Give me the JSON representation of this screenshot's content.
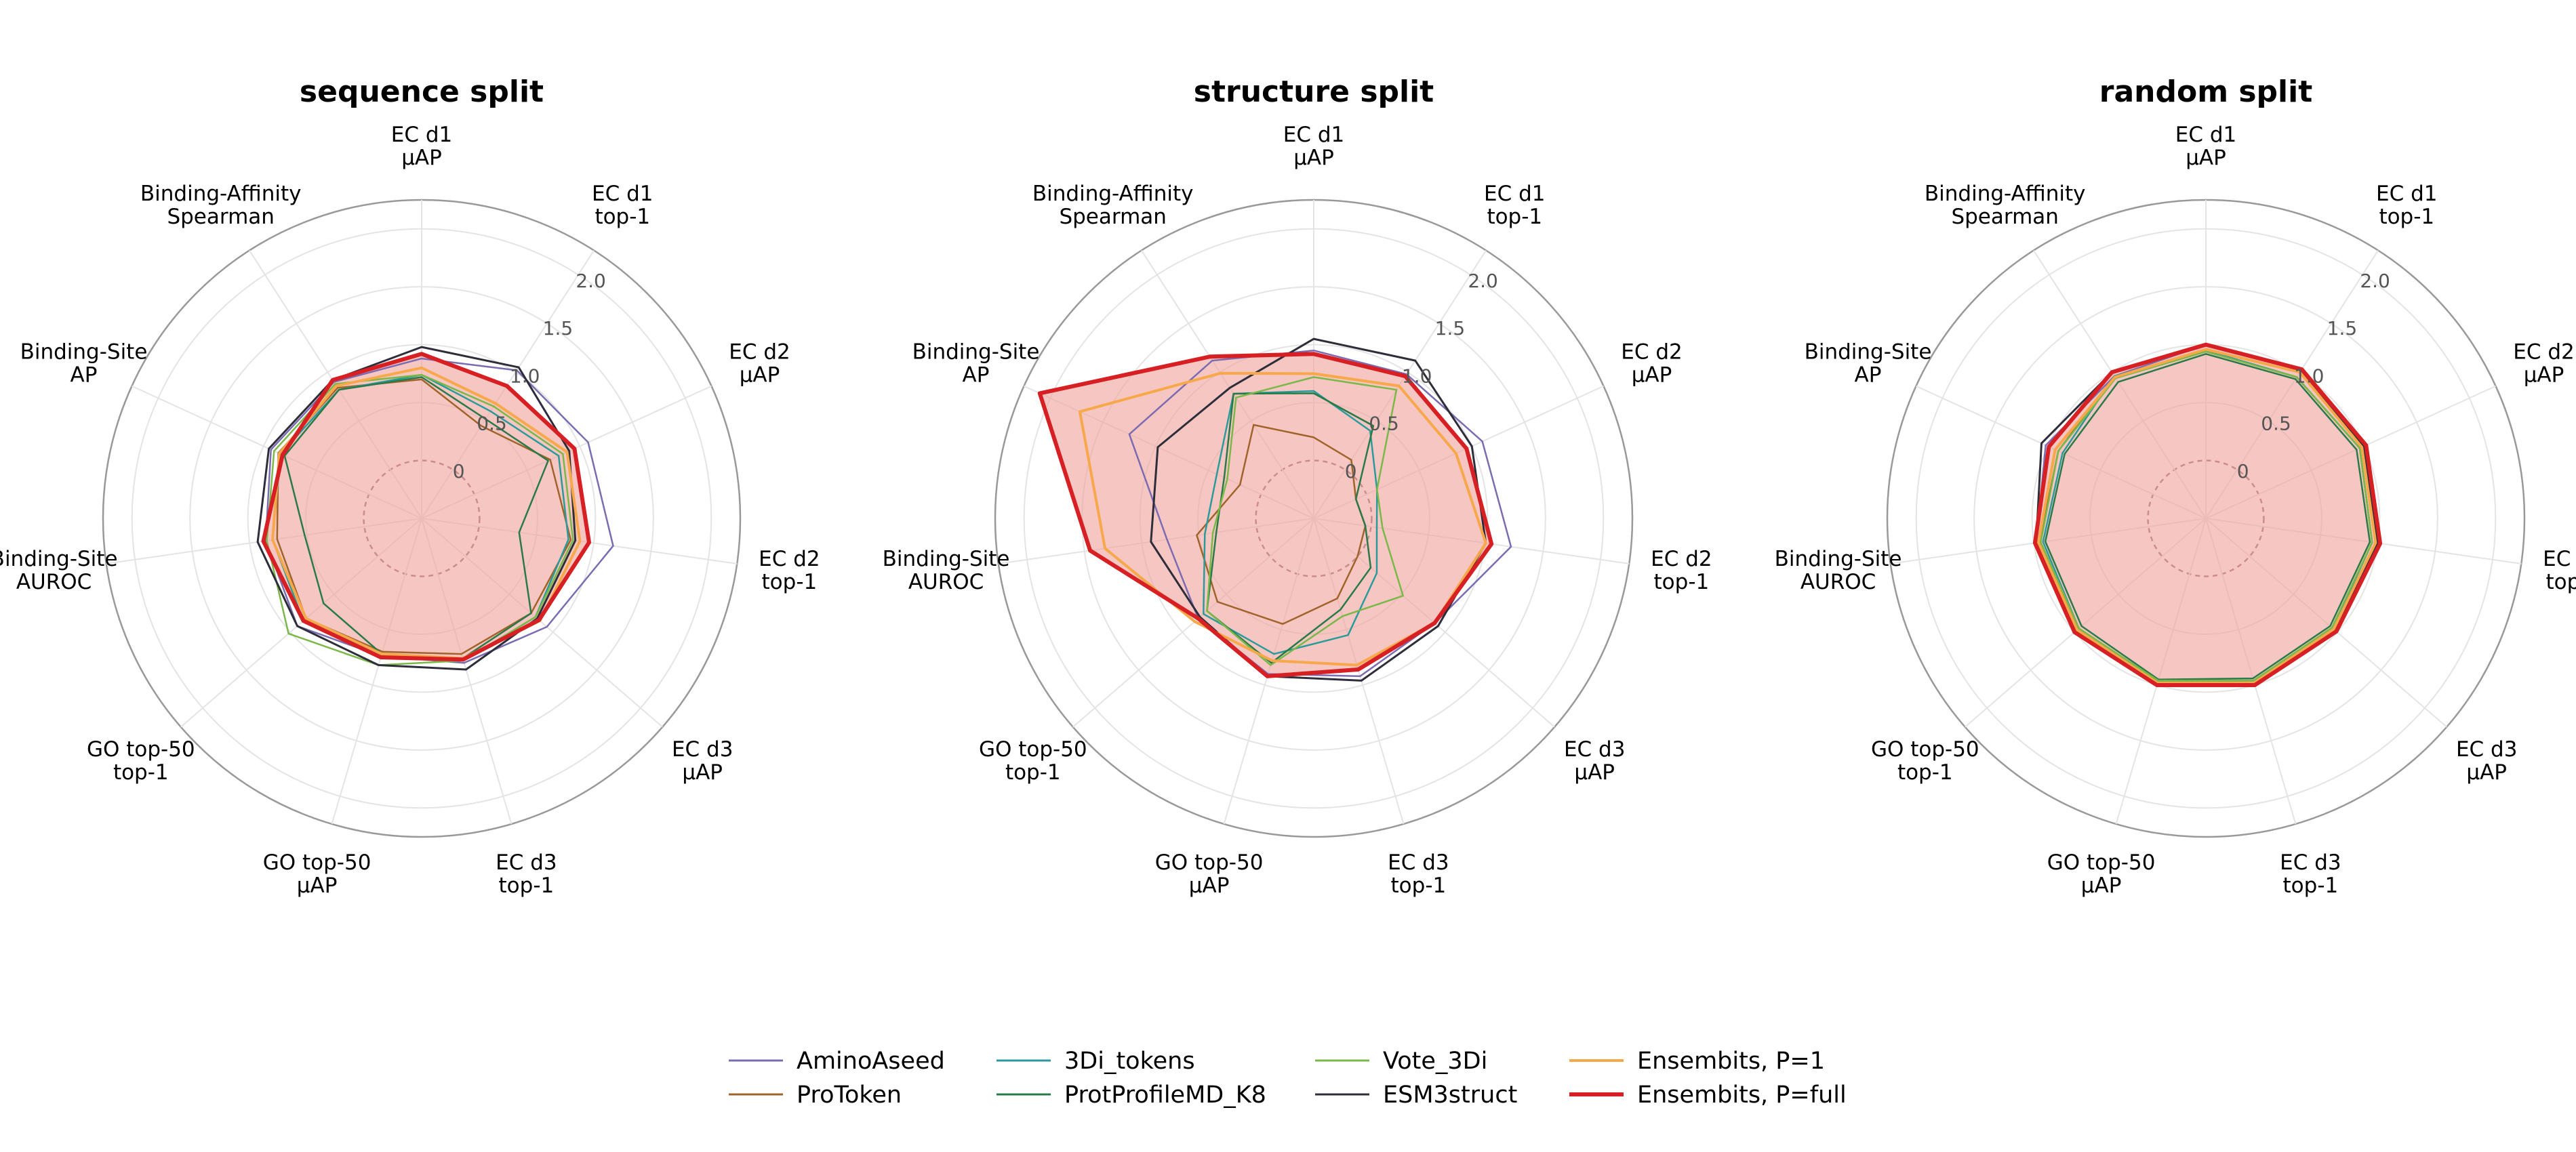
{
  "chart_data": {
    "type": "radar",
    "axes": [
      [
        "EC d1",
        "µAP"
      ],
      [
        "EC d1",
        "top-1"
      ],
      [
        "EC d2",
        "µAP"
      ],
      [
        "EC d2",
        "top-1"
      ],
      [
        "EC d3",
        "µAP"
      ],
      [
        "EC d3",
        "top-1"
      ],
      [
        "GO top-50",
        "µAP"
      ],
      [
        "GO top-50",
        "top-1"
      ],
      [
        "Binding-Site",
        "AUROC"
      ],
      [
        "Binding-Site",
        "AP"
      ],
      [
        "Binding-Affinity",
        "Spearman"
      ]
    ],
    "radial_ticks": [
      0,
      0.5,
      1.0,
      1.5,
      2.0
    ],
    "radial_tick_labels": [
      "0",
      "0.5",
      "1.0",
      "1.5",
      "2.0"
    ],
    "radial_range": [
      -0.5,
      2.25
    ],
    "grid": true,
    "legend_position": "bottom-center",
    "series_styles": [
      {
        "name": "AminoAseed",
        "color": "#7b6bb0",
        "width": 2.5
      },
      {
        "name": "ProToken",
        "color": "#a0642a",
        "width": 2.5
      },
      {
        "name": "3Di_tokens",
        "color": "#2a9a9a",
        "width": 2.5
      },
      {
        "name": "ProtProfileMD_K8",
        "color": "#2a7a48",
        "width": 2.5
      },
      {
        "name": "Vote_3Di",
        "color": "#7ab848",
        "width": 2.5
      },
      {
        "name": "ESM3struct",
        "color": "#2e2e3a",
        "width": 3
      },
      {
        "name": "Ensembits, P=1",
        "color": "#f7a84a",
        "width": 4
      },
      {
        "name": "Ensembits, P=full",
        "color": "#d62024",
        "width": 6,
        "fill": "#f0a39e"
      }
    ],
    "charts": [
      {
        "title": "sequence split",
        "series": [
          {
            "name": "AminoAseed",
            "values": [
              0.88,
              1.02,
              1.08,
              1.17,
              0.93,
              0.8,
              0.74,
              0.92,
              0.86,
              0.93,
              0.9
            ]
          },
          {
            "name": "ProToken",
            "values": [
              0.7,
              0.45,
              0.72,
              0.8,
              0.75,
              0.72,
              0.7,
              0.82,
              0.76,
              0.86,
              0.84
            ]
          },
          {
            "name": "3Di_tokens",
            "values": [
              0.74,
              0.6,
              0.8,
              0.78,
              0.8,
              0.78,
              0.72,
              0.85,
              0.8,
              0.84,
              0.82
            ]
          },
          {
            "name": "ProtProfileMD_K8",
            "values": [
              0.72,
              0.52,
              0.7,
              0.35,
              0.75,
              0.76,
              0.72,
              0.62,
              0.52,
              0.8,
              0.82
            ]
          },
          {
            "name": "Vote_3Di",
            "values": [
              0.74,
              0.65,
              0.84,
              0.82,
              0.8,
              0.78,
              0.82,
              1.02,
              0.85,
              0.9,
              0.88
            ]
          },
          {
            "name": "ESM3struct",
            "values": [
              0.98,
              1.05,
              0.9,
              0.84,
              0.82,
              0.86,
              0.82,
              0.92,
              0.93,
              0.95,
              0.92
            ]
          },
          {
            "name": "Ensembits, P=1",
            "values": [
              0.8,
              0.68,
              0.88,
              0.88,
              0.85,
              0.76,
              0.72,
              0.82,
              0.8,
              0.85,
              0.86
            ]
          },
          {
            "name": "Ensembits, P=full",
            "values": [
              0.92,
              0.86,
              0.95,
              0.96,
              0.84,
              0.77,
              0.75,
              0.85,
              0.88,
              0.82,
              0.92
            ]
          }
        ]
      },
      {
        "title": "structure split",
        "series": [
          {
            "name": "AminoAseed",
            "values": [
              0.95,
              0.98,
              1.1,
              1.22,
              0.88,
              0.92,
              0.9,
              0.82,
              0.78,
              1.25,
              1.12
            ]
          },
          {
            "name": "ProToken",
            "values": [
              0.2,
              0.1,
              -0.1,
              -0.05,
              0.0,
              0.22,
              0.45,
              0.6,
              0.52,
              0.2,
              0.46
            ]
          },
          {
            "name": "3Di_tokens",
            "values": [
              0.6,
              0.4,
              0.1,
              0.05,
              0.22,
              0.55,
              0.72,
              0.76,
              0.45,
              0.42,
              0.78
            ]
          },
          {
            "name": "ProtProfileMD_K8",
            "values": [
              0.58,
              0.45,
              -0.1,
              -0.05,
              0.15,
              0.32,
              0.8,
              0.72,
              0.35,
              0.35,
              0.78
            ]
          },
          {
            "name": "Vote_3Di",
            "values": [
              0.72,
              0.82,
              0.1,
              0.1,
              0.52,
              0.38,
              0.82,
              0.72,
              0.38,
              0.32,
              0.74
            ]
          },
          {
            "name": "ESM3struct",
            "values": [
              1.05,
              1.12,
              1.0,
              1.0,
              0.92,
              0.96,
              0.92,
              0.8,
              0.92,
              0.98,
              0.84
            ]
          },
          {
            "name": "Ensembits, P=1",
            "values": [
              0.75,
              0.86,
              0.85,
              1.0,
              0.88,
              0.82,
              0.78,
              0.86,
              1.32,
              1.72,
              0.99
            ]
          },
          {
            "name": "Ensembits, P=full",
            "values": [
              0.92,
              0.96,
              0.95,
              1.05,
              0.88,
              0.86,
              0.92,
              0.82,
              1.45,
              2.1,
              1.16
            ]
          }
        ]
      },
      {
        "title": "random split",
        "series": [
          {
            "name": "AminoAseed",
            "values": [
              1.0,
              1.02,
              1.0,
              1.0,
              0.98,
              1.0,
              1.0,
              1.0,
              0.98,
              1.02,
              0.96
            ]
          },
          {
            "name": "ProToken",
            "values": [
              0.95,
              0.95,
              0.96,
              0.95,
              0.95,
              0.96,
              0.98,
              0.96,
              0.95,
              0.9,
              0.96
            ]
          },
          {
            "name": "3Di_tokens",
            "values": [
              0.95,
              0.95,
              0.96,
              0.95,
              0.95,
              0.96,
              0.97,
              0.95,
              0.92,
              0.86,
              0.96
            ]
          },
          {
            "name": "ProtProfileMD_K8",
            "values": [
              0.92,
              0.93,
              0.93,
              0.93,
              0.92,
              0.94,
              0.95,
              0.92,
              0.9,
              0.84,
              0.9
            ]
          },
          {
            "name": "Vote_3Di",
            "values": [
              0.94,
              0.95,
              0.96,
              0.95,
              0.94,
              0.96,
              0.96,
              0.95,
              0.94,
              0.9,
              0.94
            ]
          },
          {
            "name": "ESM3struct",
            "values": [
              1.0,
              1.02,
              1.0,
              1.0,
              0.98,
              1.0,
              0.98,
              0.98,
              0.98,
              1.06,
              1.0
            ]
          },
          {
            "name": "Ensembits, P=1",
            "values": [
              0.96,
              1.0,
              0.98,
              0.98,
              0.96,
              0.98,
              0.98,
              0.97,
              0.96,
              0.93,
              0.95
            ]
          },
          {
            "name": "Ensembits, P=full",
            "values": [
              1.0,
              1.03,
              1.02,
              1.02,
              0.99,
              1.0,
              1.0,
              1.0,
              0.99,
              0.99,
              1.0
            ]
          }
        ]
      }
    ]
  }
}
